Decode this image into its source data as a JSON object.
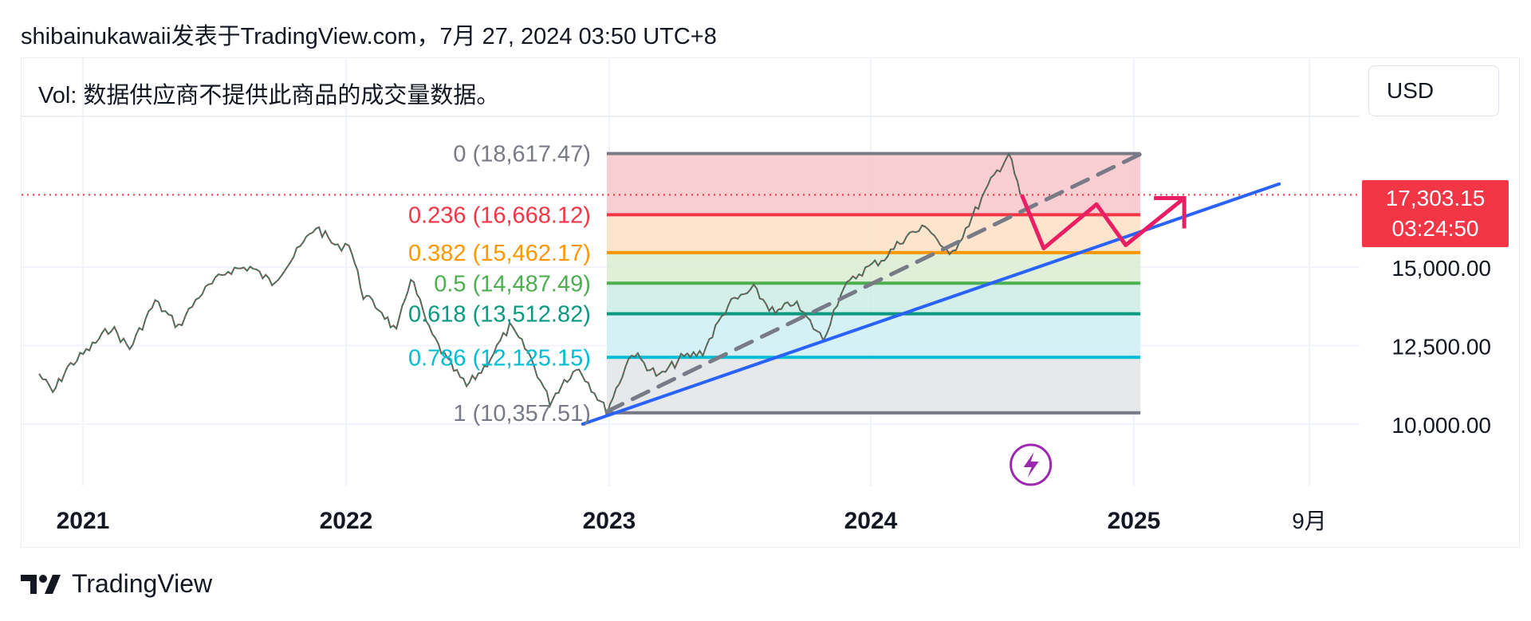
{
  "header": {
    "attribution": "shibainukawaii发表于TradingView.com，7月 27, 2024 03:50 UTC+8"
  },
  "volume_note": "Vol: 数据供应商不提供此商品的成交量数据。",
  "currency_button": {
    "label": "USD"
  },
  "brand": {
    "name": "TradingView",
    "icon": "tradingview-logo-icon"
  },
  "chart_data": {
    "type": "line",
    "title": "",
    "x_axis": {
      "tick_labels": [
        "2021",
        "2022",
        "2023",
        "2024",
        "2025",
        "9月"
      ],
      "range": [
        "2020-11",
        "2025-10"
      ]
    },
    "y_axis": {
      "tick_labels": [
        "15,000.00",
        "12,500.00",
        "10,000.00"
      ],
      "ticks": [
        15000,
        12500,
        10000
      ],
      "range": [
        8000,
        19500
      ],
      "side": "right"
    },
    "current_price": {
      "value": 17303.15,
      "label": "17,303.15",
      "countdown": "03:24:50",
      "color": "#f23645"
    },
    "price_series": {
      "name": "",
      "points": [
        [
          "2020-11-01",
          11600
        ],
        [
          "2020-11-20",
          11000
        ],
        [
          "2020-12-10",
          11800
        ],
        [
          "2021-01-10",
          12400
        ],
        [
          "2021-02-10",
          13100
        ],
        [
          "2021-03-05",
          12400
        ],
        [
          "2021-04-10",
          13900
        ],
        [
          "2021-05-12",
          13100
        ],
        [
          "2021-06-10",
          14100
        ],
        [
          "2021-07-20",
          14900
        ],
        [
          "2021-08-20",
          15000
        ],
        [
          "2021-09-20",
          14500
        ],
        [
          "2021-10-15",
          15200
        ],
        [
          "2021-11-20",
          16300
        ],
        [
          "2021-12-20",
          15600
        ],
        [
          "2022-01-05",
          15800
        ],
        [
          "2022-01-25",
          14100
        ],
        [
          "2022-02-20",
          13600
        ],
        [
          "2022-03-10",
          12900
        ],
        [
          "2022-03-30",
          14700
        ],
        [
          "2022-04-25",
          13000
        ],
        [
          "2022-05-20",
          12000
        ],
        [
          "2022-06-16",
          11200
        ],
        [
          "2022-07-10",
          11800
        ],
        [
          "2022-08-15",
          13100
        ],
        [
          "2022-09-10",
          12300
        ],
        [
          "2022-10-10",
          10700
        ],
        [
          "2022-10-30",
          11400
        ],
        [
          "2022-11-20",
          11800
        ],
        [
          "2022-12-28",
          10400
        ],
        [
          "2023-02-02",
          12300
        ],
        [
          "2023-03-10",
          11500
        ],
        [
          "2023-04-10",
          12100
        ],
        [
          "2023-05-10",
          12300
        ],
        [
          "2023-06-15",
          13800
        ],
        [
          "2023-07-20",
          14300
        ],
        [
          "2023-08-20",
          13500
        ],
        [
          "2023-09-15",
          13900
        ],
        [
          "2023-10-26",
          12700
        ],
        [
          "2023-11-20",
          14200
        ],
        [
          "2023-12-15",
          14800
        ],
        [
          "2024-01-20",
          15300
        ],
        [
          "2024-02-20",
          16000
        ],
        [
          "2024-03-20",
          16300
        ],
        [
          "2024-04-19",
          15300
        ],
        [
          "2024-05-20",
          16600
        ],
        [
          "2024-06-20",
          17900
        ],
        [
          "2024-07-10",
          18617
        ],
        [
          "2024-07-26",
          17303
        ]
      ]
    },
    "fibonacci_retracement": {
      "start": "2022-12-28",
      "end": "2025-01-10",
      "levels": [
        {
          "ratio": 0,
          "label": "0 (18,617.47)",
          "price": 18617.47,
          "color": "#787b86",
          "fill": "#f7c6cb"
        },
        {
          "ratio": 0.236,
          "label": "0.236 (16,668.12)",
          "price": 16668.12,
          "color": "#f23645",
          "fill": "#fde0c4"
        },
        {
          "ratio": 0.382,
          "label": "0.382 (15,462.17)",
          "price": 15462.17,
          "color": "#ff9800",
          "fill": "#d9ecd1"
        },
        {
          "ratio": 0.5,
          "label": "0.5 (14,487.49)",
          "price": 14487.49,
          "color": "#4caf50",
          "fill": "#cdebe4"
        },
        {
          "ratio": 0.618,
          "label": "0.618 (13,512.82)",
          "price": 13512.82,
          "color": "#089981",
          "fill": "#cfeff5"
        },
        {
          "ratio": 0.786,
          "label": "0.786 (12,125.15)",
          "price": 12125.15,
          "color": "#00bcd4",
          "fill": "#e3e4e6"
        },
        {
          "ratio": 1,
          "label": "1 (10,357.51)",
          "price": 10357.51,
          "color": "#787b86",
          "fill": ""
        }
      ]
    },
    "trendlines": [
      {
        "name": "",
        "style": "solid",
        "color": "#2962ff",
        "from": [
          "2022-11-25",
          10000
        ],
        "to": [
          "2025-07-20",
          17650
        ]
      },
      {
        "name": "",
        "style": "dashed",
        "color": "#787b86",
        "from": [
          "2022-12-28",
          10400
        ],
        "to": [
          "2025-01-10",
          18600
        ]
      }
    ],
    "projection_path": {
      "color": "#e91e63",
      "points": [
        [
          "2024-07-28",
          17300
        ],
        [
          "2024-08-28",
          15600
        ],
        [
          "2024-11-10",
          17000
        ],
        [
          "2024-12-20",
          15700
        ],
        [
          "2025-03-10",
          17200
        ]
      ]
    },
    "event_icon": {
      "name": "lightning-icon",
      "date": "2024-08-10",
      "color": "#9c27b0"
    },
    "grid": true
  }
}
